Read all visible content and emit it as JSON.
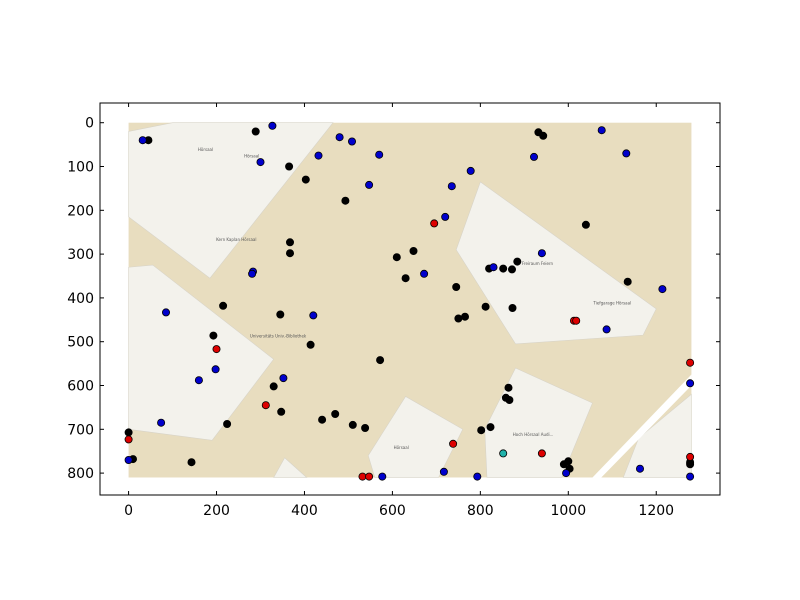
{
  "chart_data": {
    "type": "scatter",
    "title": "",
    "xlabel": "",
    "ylabel": "",
    "xlim": [
      -65,
      1345
    ],
    "ylim": [
      850,
      -45
    ],
    "y_inverted": true,
    "xticks": [
      0,
      200,
      400,
      600,
      800,
      1000,
      1200
    ],
    "yticks": [
      0,
      100,
      200,
      300,
      400,
      500,
      600,
      700,
      800
    ],
    "xtick_labels": [
      "0",
      "200",
      "400",
      "600",
      "800",
      "1000",
      "1200"
    ],
    "ytick_labels": [
      "0",
      "100",
      "200",
      "300",
      "400",
      "500",
      "600",
      "700",
      "800"
    ],
    "grid": false,
    "legend": "none",
    "background_image": {
      "kind": "street map",
      "extent": [
        0,
        1280,
        0,
        810
      ],
      "base_color": "#e8ddbf",
      "building_color": "#f3f2ec",
      "labels": [
        "Hörsaal",
        "Hörsaal",
        "Kern Kaplan\nHörsaal",
        "Universitäts\nUniv.-Bibliothek",
        "Tiefgarage\nHörsaal",
        "Freiraum\nFeiern",
        "Hörsaal",
        "Hoch Hörsaal\nAudi..."
      ]
    },
    "series": [
      {
        "color": "#000000",
        "points": [
          [
            289,
            20
          ],
          [
            45,
            40
          ],
          [
            365,
            100
          ],
          [
            403,
            130
          ],
          [
            493,
            178
          ],
          [
            932,
            22
          ],
          [
            943,
            30
          ],
          [
            1040,
            233
          ],
          [
            367,
            273
          ],
          [
            367,
            298
          ],
          [
            610,
            307
          ],
          [
            648,
            293
          ],
          [
            630,
            355
          ],
          [
            820,
            333
          ],
          [
            852,
            333
          ],
          [
            872,
            335
          ],
          [
            884,
            317
          ],
          [
            745,
            375
          ],
          [
            215,
            418
          ],
          [
            345,
            438
          ],
          [
            750,
            447
          ],
          [
            765,
            443
          ],
          [
            812,
            420
          ],
          [
            873,
            423
          ],
          [
            193,
            486
          ],
          [
            414,
            507
          ],
          [
            572,
            542
          ],
          [
            1135,
            363
          ],
          [
            330,
            602
          ],
          [
            347,
            660
          ],
          [
            440,
            678
          ],
          [
            470,
            665
          ],
          [
            510,
            690
          ],
          [
            538,
            697
          ],
          [
            224,
            688
          ],
          [
            802,
            702
          ],
          [
            823,
            695
          ],
          [
            858,
            628
          ],
          [
            864,
            605
          ],
          [
            866,
            633
          ],
          [
            990,
            780
          ],
          [
            1000,
            773
          ],
          [
            1003,
            790
          ],
          [
            1277,
            775
          ],
          [
            1277,
            780
          ],
          [
            143,
            775
          ],
          [
            0,
            707
          ],
          [
            10,
            768
          ]
        ]
      },
      {
        "color": "#0000cc",
        "points": [
          [
            327,
            7
          ],
          [
            32,
            40
          ],
          [
            300,
            90
          ],
          [
            432,
            75
          ],
          [
            480,
            33
          ],
          [
            508,
            43
          ],
          [
            570,
            73
          ],
          [
            547,
            142
          ],
          [
            735,
            145
          ],
          [
            778,
            110
          ],
          [
            922,
            78
          ],
          [
            1076,
            17
          ],
          [
            1132,
            70
          ],
          [
            720,
            215
          ],
          [
            940,
            298
          ],
          [
            830,
            330
          ],
          [
            672,
            345
          ],
          [
            283,
            340
          ],
          [
            281,
            345
          ],
          [
            420,
            440
          ],
          [
            85,
            433
          ],
          [
            1214,
            380
          ],
          [
            1087,
            472
          ],
          [
            198,
            563
          ],
          [
            160,
            588
          ],
          [
            352,
            583
          ],
          [
            74,
            685
          ],
          [
            0,
            770
          ],
          [
            577,
            808
          ],
          [
            717,
            797
          ],
          [
            793,
            808
          ],
          [
            995,
            800
          ],
          [
            1163,
            790
          ],
          [
            1277,
            595
          ],
          [
            1277,
            808
          ]
        ]
      },
      {
        "color": "#dd0000",
        "points": [
          [
            695,
            230
          ],
          [
            1013,
            452
          ],
          [
            1018,
            452
          ],
          [
            200,
            517
          ],
          [
            312,
            645
          ],
          [
            0,
            723
          ],
          [
            738,
            733
          ],
          [
            940,
            755
          ],
          [
            532,
            808
          ],
          [
            547,
            808
          ],
          [
            1277,
            548
          ],
          [
            1277,
            763
          ]
        ]
      },
      {
        "color": "#20b2aa",
        "points": [
          [
            852,
            755
          ]
        ]
      }
    ]
  }
}
